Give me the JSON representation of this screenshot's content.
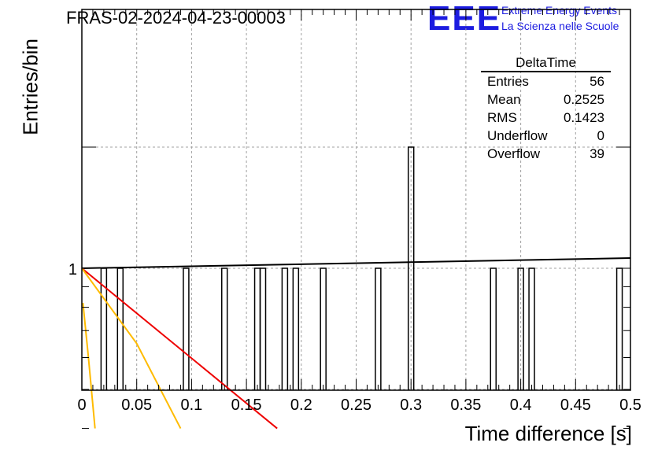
{
  "header": {
    "title": "FRAS-02-2024-04-23-00003"
  },
  "logo": {
    "mark": "EEE",
    "line1": "Extreme Energy Events",
    "line2": "La Scienza nelle Scuole",
    "color": "#1c1ce0"
  },
  "stats": {
    "name": "DeltaTime",
    "rows": [
      {
        "label": "Entries",
        "value": "56"
      },
      {
        "label": "Mean",
        "value": "0.2525"
      },
      {
        "label": "RMS",
        "value": "0.1423"
      },
      {
        "label": "Underflow",
        "value": "0"
      },
      {
        "label": "Overflow",
        "value": "39"
      }
    ]
  },
  "chart_data": {
    "type": "bar",
    "title": "FRAS-02-2024-04-23-00003",
    "xlabel": "Time difference [s]",
    "ylabel": "Entries/bin",
    "log_y": true,
    "xlim": [
      0,
      0.5
    ],
    "xticks": [
      "0",
      "0.05",
      "0.1",
      "0.15",
      "0.2",
      "0.25",
      "0.3",
      "0.35",
      "0.4",
      "0.45",
      "0.5"
    ],
    "yticks_labeled": [
      "1"
    ],
    "grid": true,
    "bin_width": 0.005,
    "histogram_bins": [
      {
        "x": 0.02,
        "count": 1
      },
      {
        "x": 0.035,
        "count": 1
      },
      {
        "x": 0.095,
        "count": 1
      },
      {
        "x": 0.13,
        "count": 1
      },
      {
        "x": 0.16,
        "count": 1
      },
      {
        "x": 0.165,
        "count": 1
      },
      {
        "x": 0.185,
        "count": 1
      },
      {
        "x": 0.195,
        "count": 1
      },
      {
        "x": 0.22,
        "count": 1
      },
      {
        "x": 0.27,
        "count": 1
      },
      {
        "x": 0.3,
        "count": 2
      },
      {
        "x": 0.375,
        "count": 1
      },
      {
        "x": 0.4,
        "count": 1
      },
      {
        "x": 0.41,
        "count": 1
      },
      {
        "x": 0.49,
        "count": 1
      }
    ],
    "fit_curves": [
      {
        "color": "#000000",
        "points": [
          [
            0,
            1.0
          ],
          [
            0.5,
            1.06
          ]
        ]
      },
      {
        "color": "#ee0000",
        "points": [
          [
            0,
            1.0
          ],
          [
            0.178,
            0.4
          ]
        ]
      },
      {
        "color": "#ffbb00",
        "points": [
          [
            0,
            1.0
          ],
          [
            0.05,
            0.65
          ],
          [
            0.09,
            0.4
          ]
        ]
      },
      {
        "color": "#ffbb00",
        "points": [
          [
            0.001,
            0.82
          ],
          [
            0.006,
            0.6
          ],
          [
            0.012,
            0.4
          ]
        ]
      }
    ]
  }
}
